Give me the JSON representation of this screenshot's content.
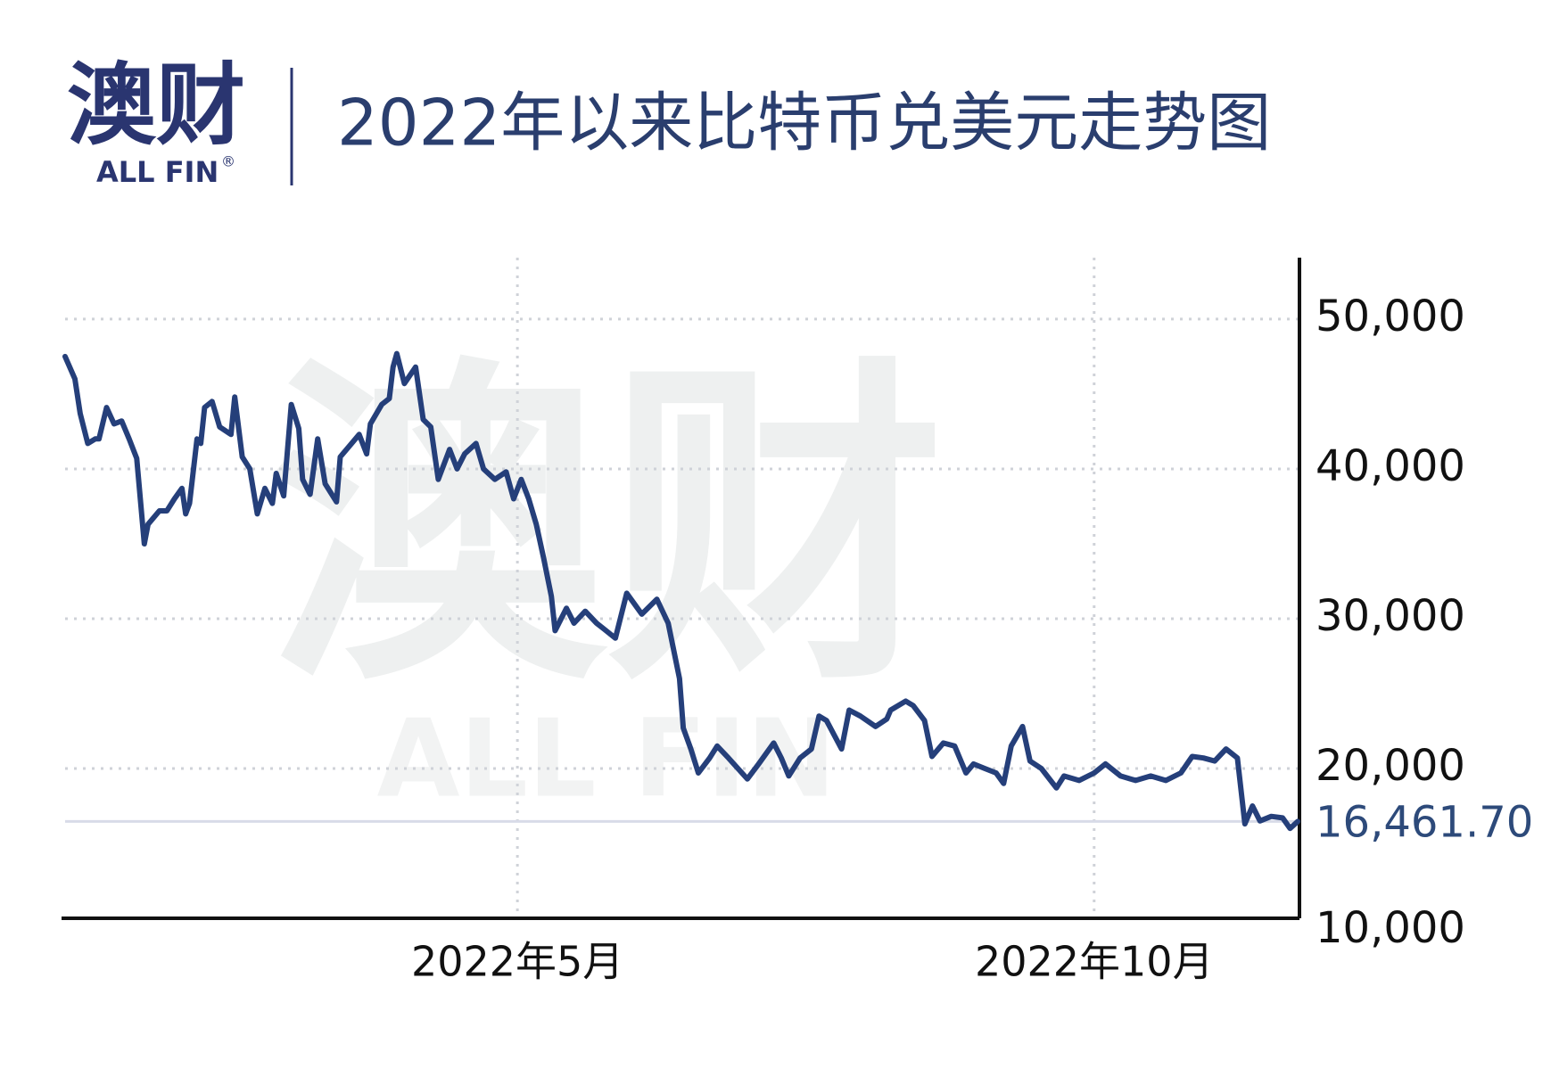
{
  "brand": {
    "name": "澳财",
    "sub": "ALL FIN",
    "mark": "®"
  },
  "chart_data": {
    "type": "line",
    "title": "2022年以来比特币兑美元走势图",
    "x": [
      0,
      2.6,
      4,
      6,
      8,
      9,
      11,
      13,
      15,
      17,
      19,
      21,
      22,
      25,
      27,
      29,
      31,
      32,
      33,
      35,
      36,
      37,
      39,
      41,
      44,
      45,
      47,
      49,
      51,
      53,
      55,
      56,
      58,
      60,
      62,
      63,
      65,
      67,
      69,
      72,
      73,
      76,
      78,
      80,
      81,
      84,
      86,
      87,
      88,
      90,
      93,
      95,
      97,
      99,
      102,
      104,
      106,
      109,
      111,
      114,
      117,
      119,
      121,
      123,
      125,
      127,
      129,
      130,
      133,
      135,
      138,
      141,
      143,
      146,
      149,
      153,
      157,
      160,
      163,
      164,
      166,
      168,
      171,
      173,
      176,
      181,
      184,
      188,
      190,
      192,
      195,
      198,
      200,
      202,
      206,
      208,
      211,
      215,
      218,
      219,
      223,
      225,
      228,
      230,
      233,
      236,
      239,
      241,
      244,
      247,
      249,
      251,
      254,
      256,
      259,
      263,
      265,
      269,
      273,
      276,
      280,
      284,
      288,
      292,
      296,
      299,
      302,
      305,
      308,
      311,
      313,
      315,
      317,
      320,
      323,
      325,
      327
    ],
    "series": [
      {
        "name": "比特币兑美元",
        "color": "#253f7a",
        "values": [
          47500,
          46000,
          43700,
          41700,
          42000,
          42000,
          44100,
          43000,
          43200,
          42000,
          40700,
          35000,
          36300,
          37200,
          37200,
          38000,
          38700,
          37000,
          37700,
          42000,
          41700,
          44100,
          44500,
          42800,
          42300,
          44800,
          40800,
          40000,
          37000,
          38700,
          37700,
          39700,
          38200,
          44300,
          42700,
          39300,
          38300,
          42000,
          39000,
          37800,
          40800,
          41700,
          42300,
          41000,
          43000,
          44300,
          44700,
          46800,
          47700,
          45700,
          46800,
          43300,
          42800,
          39300,
          41300,
          40000,
          41000,
          41700,
          40000,
          39300,
          39800,
          38000,
          39300,
          38000,
          36300,
          34000,
          31500,
          29200,
          30700,
          29700,
          30500,
          29700,
          29300,
          28700,
          31700,
          30300,
          31300,
          29700,
          26000,
          22700,
          21300,
          19700,
          20700,
          21500,
          20700,
          19300,
          20300,
          21700,
          20700,
          19500,
          20700,
          21300,
          23500,
          23200,
          21300,
          23900,
          23500,
          22800,
          23300,
          23900,
          24500,
          24200,
          23200,
          20800,
          21700,
          21500,
          19700,
          20300,
          20000,
          19700,
          19000,
          21500,
          22800,
          20500,
          20000,
          18700,
          19500,
          19200,
          19700,
          20300,
          19500,
          19200,
          19500,
          19200,
          19700,
          20800,
          20700,
          20500,
          21300,
          20700,
          16300,
          17500,
          16500,
          16800,
          16700,
          16000,
          16461.7
        ]
      }
    ],
    "latest": {
      "value": 16461.7,
      "label": "16,461.70",
      "color": "#d8dbe8"
    },
    "xlim": [
      0,
      327
    ],
    "xticks": [
      {
        "value": 120,
        "label": "2022年5月"
      },
      {
        "value": 273,
        "label": "2022年10月"
      }
    ],
    "ylim": [
      10000,
      54400
    ],
    "yticks": [
      {
        "value": 10000,
        "label": "10,000"
      },
      {
        "value": 20000,
        "label": "20,000"
      },
      {
        "value": 30000,
        "label": "30,000"
      },
      {
        "value": 40000,
        "label": "40,000"
      },
      {
        "value": 50000,
        "label": "50,000"
      }
    ],
    "grid": true
  }
}
